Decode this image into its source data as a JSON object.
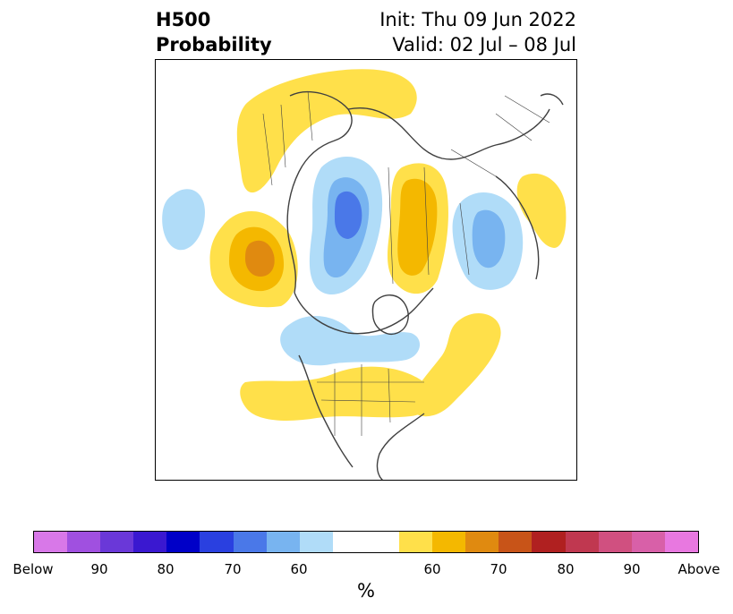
{
  "title": {
    "line1": "H500",
    "line2": "Probability",
    "init": "Init: Thu 09 Jun 2022",
    "valid": "Valid: 02 Jul – 08 Jul"
  },
  "map": {
    "projection": "north-polar-stereographic",
    "variable": "500 hPa height probability anomaly"
  },
  "colorbar": {
    "colors": [
      "#d878e8",
      "#a050e0",
      "#6a38d8",
      "#3a18d0",
      "#0000c8",
      "#2a40e0",
      "#4a78e8",
      "#78b4f0",
      "#b0dcf8",
      "#ffffff",
      "#ffffff",
      "#ffe04a",
      "#f4b800",
      "#e08a10",
      "#c85418",
      "#b02020",
      "#c03850",
      "#d05080",
      "#d860a8",
      "#e878e0"
    ],
    "tick_labels": [
      "Below",
      "90",
      "80",
      "70",
      "60",
      "60",
      "70",
      "80",
      "90",
      "Above"
    ],
    "unit": "%"
  }
}
